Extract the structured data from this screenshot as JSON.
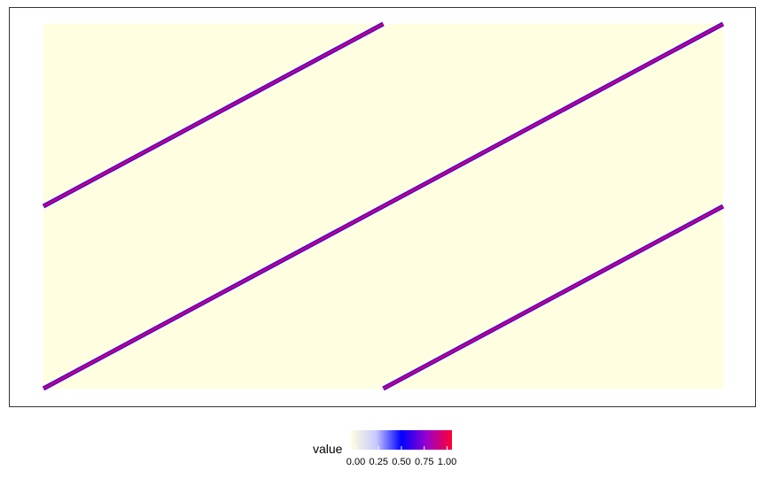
{
  "chart_data": {
    "type": "heatmap",
    "title": "",
    "xlabel": "",
    "ylabel": "",
    "grid": false,
    "colors": {
      "background": "#FFFEE0",
      "band_edge": "#3300FF",
      "band_core": "#CC0066"
    },
    "bands": [
      {
        "x0": 0.0,
        "y0": 0.5,
        "x1": 0.5,
        "y1": 1.0
      },
      {
        "x0": 0.0,
        "y0": 0.0,
        "x1": 1.0,
        "y1": 1.0
      },
      {
        "x0": 0.5,
        "y0": 0.0,
        "x1": 1.0,
        "y1": 0.5
      }
    ],
    "legend": {
      "title": "value",
      "position": "bottom",
      "ticks": [
        "0.00",
        "0.25",
        "0.50",
        "0.75",
        "1.00"
      ],
      "gradient": [
        "#FFFEE0",
        "#C8C8FF",
        "#0000FF",
        "#9900CC",
        "#FF0033"
      ]
    }
  }
}
